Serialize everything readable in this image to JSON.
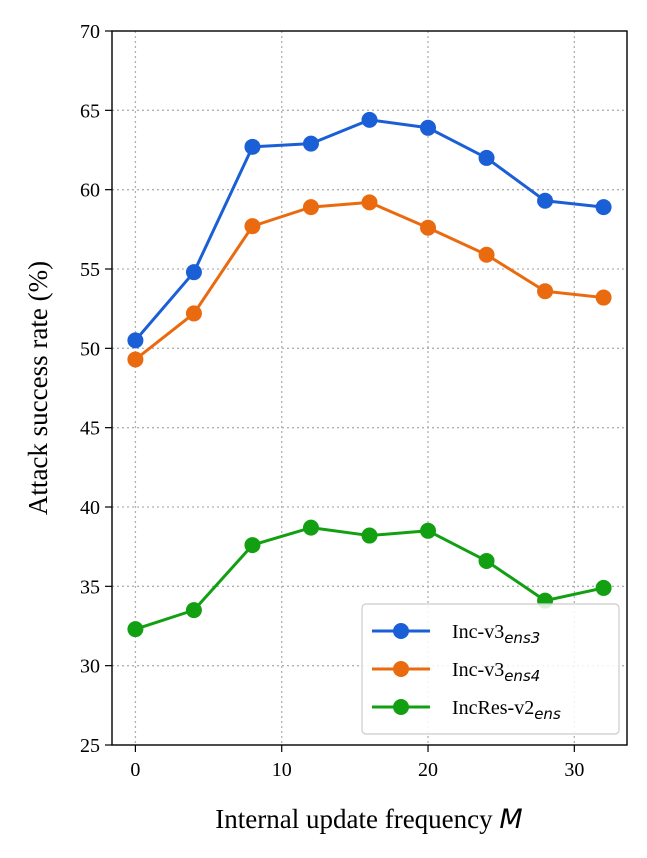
{
  "chart_data": {
    "type": "line",
    "xlabel": "Internal update frequency",
    "xlabel_var": "M",
    "ylabel": "Attack success rate (%)",
    "x": [
      0,
      4,
      8,
      12,
      16,
      20,
      24,
      28,
      32
    ],
    "xlim": [
      -1.6,
      33.6
    ],
    "ylim": [
      25,
      70
    ],
    "xticks": [
      0,
      10,
      20,
      30
    ],
    "yticks": [
      25,
      30,
      35,
      40,
      45,
      50,
      55,
      60,
      65,
      70
    ],
    "grid": true,
    "legend_position": "bottom-right",
    "series": [
      {
        "name": "Inc-v3",
        "subscript": "ens3",
        "color": "#1a5fd6",
        "values": [
          50.5,
          54.8,
          62.7,
          62.9,
          64.4,
          63.9,
          62.0,
          59.3,
          58.9
        ]
      },
      {
        "name": "Inc-v3",
        "subscript": "ens4",
        "color": "#ea6a0f",
        "values": [
          49.3,
          52.2,
          57.7,
          58.9,
          59.2,
          57.6,
          55.9,
          53.6,
          53.2
        ]
      },
      {
        "name": "IncRes-v2",
        "subscript": "ens",
        "color": "#12a012",
        "values": [
          32.3,
          33.5,
          37.6,
          38.7,
          38.2,
          38.5,
          36.6,
          34.1,
          34.9
        ]
      }
    ]
  }
}
